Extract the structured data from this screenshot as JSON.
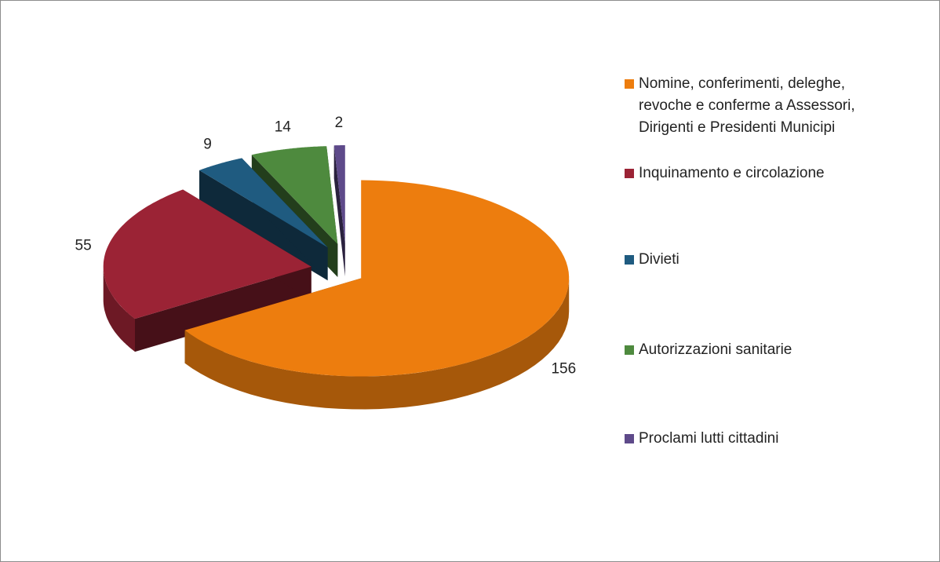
{
  "chart_data": {
    "type": "pie3d",
    "categories": [
      "Nomine, conferimenti, deleghe, revoche e conferme a Assessori, Dirigenti e Presidenti Municipi",
      "Inquinamento e circolazione",
      "Divieti",
      "Autorizzazioni sanitarie",
      "Proclami lutti cittadini"
    ],
    "values": [
      156,
      55,
      9,
      14,
      2
    ],
    "colors": [
      "#ed7d0e",
      "#9b2335",
      "#1f5b80",
      "#4e8a3e",
      "#5e4a8a"
    ],
    "legend": "right"
  }
}
